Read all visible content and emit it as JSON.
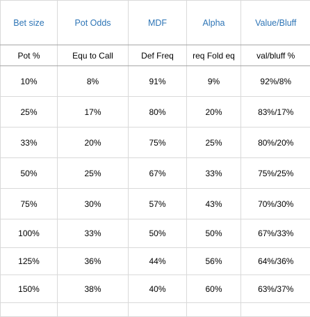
{
  "columns": [
    "Bet size",
    "Pot Odds",
    "MDF",
    "Alpha",
    "Value/Bluff"
  ],
  "subheaders": [
    "Pot %",
    "Equ to Call",
    "Def Freq",
    "req Fold eq",
    "val/bluff %"
  ],
  "rows": [
    [
      "10%",
      "8%",
      "91%",
      "9%",
      "92%/8%"
    ],
    [
      "25%",
      "17%",
      "80%",
      "20%",
      "83%/17%"
    ],
    [
      "33%",
      "20%",
      "75%",
      "25%",
      "80%/20%"
    ],
    [
      "50%",
      "25%",
      "67%",
      "33%",
      "75%/25%"
    ],
    [
      "75%",
      "30%",
      "57%",
      "43%",
      "70%/30%"
    ],
    [
      "100%",
      "33%",
      "50%",
      "50%",
      "67%/33%"
    ],
    [
      "125%",
      "36%",
      "44%",
      "56%",
      "64%/36%"
    ],
    [
      "150%",
      "38%",
      "40%",
      "60%",
      "63%/37%"
    ],
    [
      "",
      "",
      "",
      "",
      ""
    ]
  ],
  "colors": {
    "header_text": "#2e75b6",
    "gridline": "#d9d9d9"
  }
}
